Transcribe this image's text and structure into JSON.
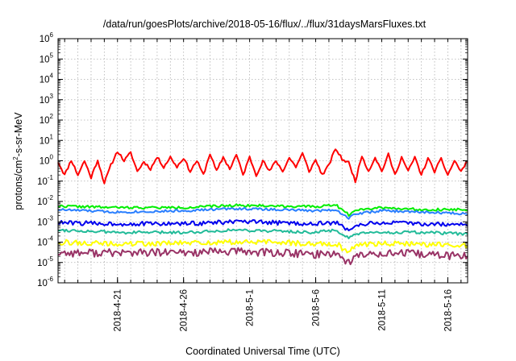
{
  "chart_data": {
    "type": "line",
    "title": "/data/run/goesPlots/archive/2018-05-16/flux/../flux/31daysMarsFluxes.txt",
    "xlabel": "Coordinated Universal Time (UTC)",
    "ylabel": {
      "pre": "protons/cm",
      "sup": "2",
      "post": "-s-sr-MeV"
    },
    "y_scale": "log",
    "ylim": [
      1e-06,
      1000000.0
    ],
    "y_ticks": [
      {
        "base": "10",
        "exp": "-6"
      },
      {
        "base": "10",
        "exp": "-5"
      },
      {
        "base": "10",
        "exp": "-4"
      },
      {
        "base": "10",
        "exp": "-3"
      },
      {
        "base": "10",
        "exp": "-2"
      },
      {
        "base": "10",
        "exp": "-1"
      },
      {
        "base": "10",
        "exp": "0"
      },
      {
        "base": "10",
        "exp": "1"
      },
      {
        "base": "10",
        "exp": "2"
      },
      {
        "base": "10",
        "exp": "3"
      },
      {
        "base": "10",
        "exp": "4"
      },
      {
        "base": "10",
        "exp": "5"
      },
      {
        "base": "10",
        "exp": "6"
      }
    ],
    "xlim": [
      "2018-04-16T12:00",
      "2018-05-17T12:00"
    ],
    "x_ticks": [
      "2018-4-21",
      "2018-4-26",
      "2018-5-1",
      "2018-5-6",
      "2018-5-11",
      "2018-5-16"
    ],
    "x_tick_dates": [
      "2018-04-21",
      "2018-04-26",
      "2018-05-01",
      "2018-05-06",
      "2018-05-11",
      "2018-05-16"
    ],
    "grid": true,
    "series": [
      {
        "color": "#ff0000",
        "width": 2,
        "seed": 11,
        "noise": 0.07,
        "values": [
          [
            "2018-04-16T12:00",
            0.9
          ],
          [
            "2018-04-17T00:00",
            0.2
          ],
          [
            "2018-04-17T12:00",
            1.1
          ],
          [
            "2018-04-18T00:00",
            0.2
          ],
          [
            "2018-04-18T12:00",
            1.0
          ],
          [
            "2018-04-19T00:00",
            0.15
          ],
          [
            "2018-04-19T12:00",
            1.1
          ],
          [
            "2018-04-20T00:00",
            0.08
          ],
          [
            "2018-04-20T12:00",
            0.6
          ],
          [
            "2018-04-21T00:00",
            3.0
          ],
          [
            "2018-04-21T12:00",
            1.0
          ],
          [
            "2018-04-22T00:00",
            2.5
          ],
          [
            "2018-04-22T12:00",
            0.3
          ],
          [
            "2018-04-23T00:00",
            0.9
          ],
          [
            "2018-04-23T12:00",
            0.4
          ],
          [
            "2018-04-24T00:00",
            1.5
          ],
          [
            "2018-04-24T12:00",
            0.5
          ],
          [
            "2018-04-25T00:00",
            1.5
          ],
          [
            "2018-04-25T12:00",
            0.5
          ],
          [
            "2018-04-26T00:00",
            1.4
          ],
          [
            "2018-04-26T12:00",
            0.3
          ],
          [
            "2018-04-27T00:00",
            1.0
          ],
          [
            "2018-04-27T12:00",
            0.2
          ],
          [
            "2018-04-28T00:00",
            2.3
          ],
          [
            "2018-04-28T12:00",
            0.3
          ],
          [
            "2018-04-29T00:00",
            1.5
          ],
          [
            "2018-04-29T12:00",
            0.4
          ],
          [
            "2018-04-30T00:00",
            2.0
          ],
          [
            "2018-04-30T12:00",
            0.2
          ],
          [
            "2018-05-01T00:00",
            1.5
          ],
          [
            "2018-05-01T12:00",
            0.2
          ],
          [
            "2018-05-02T00:00",
            1.0
          ],
          [
            "2018-05-02T12:00",
            0.3
          ],
          [
            "2018-05-03T00:00",
            1.0
          ],
          [
            "2018-05-03T12:00",
            0.3
          ],
          [
            "2018-05-04T00:00",
            1.4
          ],
          [
            "2018-05-04T12:00",
            0.5
          ],
          [
            "2018-05-05T00:00",
            2.3
          ],
          [
            "2018-05-05T12:00",
            0.3
          ],
          [
            "2018-05-06T00:00",
            1.1
          ],
          [
            "2018-05-06T12:00",
            0.2
          ],
          [
            "2018-05-07T00:00",
            0.6
          ],
          [
            "2018-05-07T12:00",
            4.0
          ],
          [
            "2018-05-08T00:00",
            1.2
          ],
          [
            "2018-05-08T12:00",
            0.8
          ],
          [
            "2018-05-09T00:00",
            0.1
          ],
          [
            "2018-05-09T12:00",
            1.8
          ],
          [
            "2018-05-10T00:00",
            0.3
          ],
          [
            "2018-05-10T12:00",
            1.5
          ],
          [
            "2018-05-11T00:00",
            0.3
          ],
          [
            "2018-05-11T12:00",
            2.0
          ],
          [
            "2018-05-12T00:00",
            0.2
          ],
          [
            "2018-05-12T12:00",
            1.5
          ],
          [
            "2018-05-13T00:00",
            0.3
          ],
          [
            "2018-05-13T12:00",
            1.5
          ],
          [
            "2018-05-14T00:00",
            0.2
          ],
          [
            "2018-05-14T12:00",
            1.3
          ],
          [
            "2018-05-15T00:00",
            0.3
          ],
          [
            "2018-05-15T12:00",
            1.2
          ],
          [
            "2018-05-16T00:00",
            0.2
          ],
          [
            "2018-05-16T12:00",
            1.0
          ],
          [
            "2018-05-17T00:00",
            0.3
          ],
          [
            "2018-05-17T12:00",
            1.0
          ]
        ]
      },
      {
        "color": "#00ee00",
        "width": 2,
        "seed": 22,
        "noise": 0.06,
        "values": [
          [
            "2018-04-16T12:00",
            0.006
          ],
          [
            "2018-04-21T00:00",
            0.005
          ],
          [
            "2018-04-26T00:00",
            0.005
          ],
          [
            "2018-04-30T00:00",
            0.0065
          ],
          [
            "2018-05-03T00:00",
            0.006
          ],
          [
            "2018-05-06T00:00",
            0.0055
          ],
          [
            "2018-05-07T12:00",
            0.007
          ],
          [
            "2018-05-08T12:00",
            0.0022
          ],
          [
            "2018-05-09T00:00",
            0.004
          ],
          [
            "2018-05-11T00:00",
            0.005
          ],
          [
            "2018-05-14T00:00",
            0.004
          ],
          [
            "2018-05-17T12:00",
            0.004
          ]
        ]
      },
      {
        "color": "#2a7fff",
        "width": 2,
        "seed": 33,
        "noise": 0.06,
        "values": [
          [
            "2018-04-16T12:00",
            0.004
          ],
          [
            "2018-04-21T00:00",
            0.003
          ],
          [
            "2018-04-26T00:00",
            0.0035
          ],
          [
            "2018-04-30T00:00",
            0.0045
          ],
          [
            "2018-05-03T00:00",
            0.004
          ],
          [
            "2018-05-06T00:00",
            0.0035
          ],
          [
            "2018-05-07T12:00",
            0.004
          ],
          [
            "2018-05-08T12:00",
            0.0015
          ],
          [
            "2018-05-09T00:00",
            0.0025
          ],
          [
            "2018-05-11T00:00",
            0.0035
          ],
          [
            "2018-05-14T00:00",
            0.003
          ],
          [
            "2018-05-17T12:00",
            0.0025
          ]
        ]
      },
      {
        "color": "#0000ee",
        "width": 2,
        "seed": 44,
        "noise": 0.11,
        "values": [
          [
            "2018-04-16T12:00",
            0.0009
          ],
          [
            "2018-04-21T00:00",
            0.0008
          ],
          [
            "2018-04-26T00:00",
            0.0008
          ],
          [
            "2018-04-30T00:00",
            0.001
          ],
          [
            "2018-05-03T00:00",
            0.0009
          ],
          [
            "2018-05-06T00:00",
            0.0008
          ],
          [
            "2018-05-07T12:00",
            0.0009
          ],
          [
            "2018-05-08T12:00",
            0.0004
          ],
          [
            "2018-05-09T00:00",
            0.0007
          ],
          [
            "2018-05-11T00:00",
            0.0009
          ],
          [
            "2018-05-14T00:00",
            0.0008
          ],
          [
            "2018-05-17T12:00",
            0.0007
          ]
        ]
      },
      {
        "color": "#22bb99",
        "width": 2,
        "seed": 55,
        "noise": 0.07,
        "values": [
          [
            "2018-04-16T12:00",
            0.0004
          ],
          [
            "2018-04-21T00:00",
            0.0003
          ],
          [
            "2018-04-26T00:00",
            0.0003
          ],
          [
            "2018-04-30T00:00",
            0.0004
          ],
          [
            "2018-05-03T00:00",
            0.00035
          ],
          [
            "2018-05-06T00:00",
            0.0003
          ],
          [
            "2018-05-07T12:00",
            0.0004
          ],
          [
            "2018-05-08T12:00",
            0.00015
          ],
          [
            "2018-05-09T00:00",
            0.00025
          ],
          [
            "2018-05-11T00:00",
            0.0003
          ],
          [
            "2018-05-14T00:00",
            0.0003
          ],
          [
            "2018-05-17T12:00",
            0.00025
          ]
        ]
      },
      {
        "color": "#ffff00",
        "width": 2,
        "seed": 66,
        "noise": 0.13,
        "values": [
          [
            "2018-04-16T12:00",
            0.0001
          ],
          [
            "2018-04-21T00:00",
            8e-05
          ],
          [
            "2018-04-26T00:00",
            9e-05
          ],
          [
            "2018-04-30T00:00",
            0.0001
          ],
          [
            "2018-05-03T00:00",
            0.0001
          ],
          [
            "2018-05-06T00:00",
            8e-05
          ],
          [
            "2018-05-07T12:00",
            9e-05
          ],
          [
            "2018-05-08T12:00",
            3e-05
          ],
          [
            "2018-05-09T00:00",
            7e-05
          ],
          [
            "2018-05-11T00:00",
            9e-05
          ],
          [
            "2018-05-14T00:00",
            8e-05
          ],
          [
            "2018-05-17T12:00",
            7e-05
          ]
        ]
      },
      {
        "color": "#993366",
        "width": 2,
        "seed": 77,
        "noise": 0.2,
        "values": [
          [
            "2018-04-16T12:00",
            3e-05
          ],
          [
            "2018-04-21T00:00",
            3e-05
          ],
          [
            "2018-04-26T00:00",
            3e-05
          ],
          [
            "2018-04-30T00:00",
            3.5e-05
          ],
          [
            "2018-05-03T00:00",
            3e-05
          ],
          [
            "2018-05-06T00:00",
            2.5e-05
          ],
          [
            "2018-05-07T12:00",
            3e-05
          ],
          [
            "2018-05-08T12:00",
            1e-05
          ],
          [
            "2018-05-09T00:00",
            2e-05
          ],
          [
            "2018-05-11T00:00",
            3e-05
          ],
          [
            "2018-05-14T00:00",
            2.5e-05
          ],
          [
            "2018-05-17T12:00",
            2e-05
          ]
        ]
      }
    ]
  }
}
